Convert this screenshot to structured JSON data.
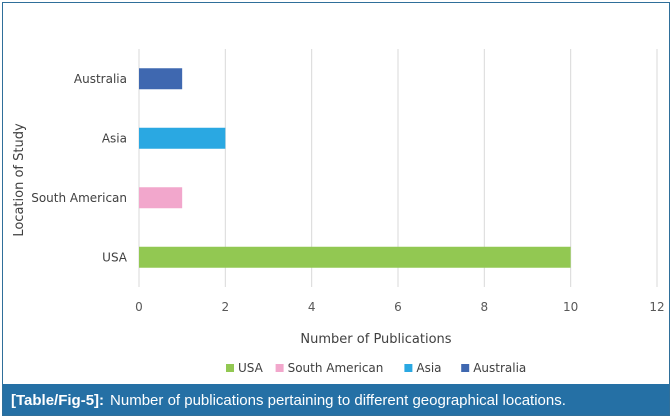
{
  "caption": {
    "label": "[Table/Fig-5]:",
    "text": "Number of publications pertaining to different geographical locations."
  },
  "chart_data": {
    "type": "bar",
    "orientation": "horizontal",
    "categories": [
      "USA",
      "South American",
      "Asia",
      "Australia"
    ],
    "values": [
      10,
      1,
      2,
      1
    ],
    "colors": [
      "#92c852",
      "#f2a7cc",
      "#2aa8e2",
      "#3f68b0"
    ],
    "xlabel": "Number of Publications",
    "ylabel": "Location of Study",
    "xlim": [
      0,
      12
    ],
    "xticks": [
      0,
      2,
      4,
      6,
      8,
      10,
      12
    ],
    "grid": "vertical",
    "legend": {
      "position": "bottom",
      "entries": [
        "USA",
        "South American",
        "Asia",
        "Australia"
      ]
    }
  }
}
